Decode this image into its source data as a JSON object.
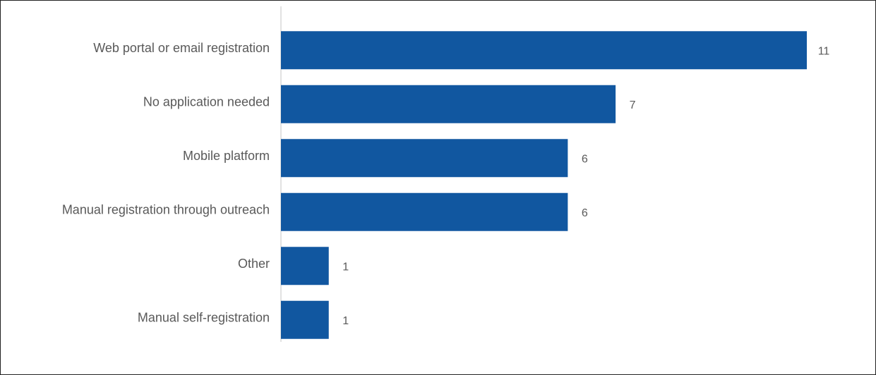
{
  "chart_data": {
    "type": "bar",
    "orientation": "horizontal",
    "categories": [
      "Web portal or email registration",
      "No application needed",
      "Mobile platform",
      "Manual registration through outreach",
      "Other",
      "Manual self-registration"
    ],
    "values": [
      11,
      7,
      6,
      6,
      1,
      1
    ],
    "title": "",
    "xlabel": "",
    "ylabel": "",
    "xlim": [
      0,
      11
    ],
    "grid": false,
    "legend": "none",
    "data_labels": true,
    "colors": {
      "bar": "#1157A0",
      "axis": "#D9D9D9",
      "text": "#595959"
    }
  }
}
